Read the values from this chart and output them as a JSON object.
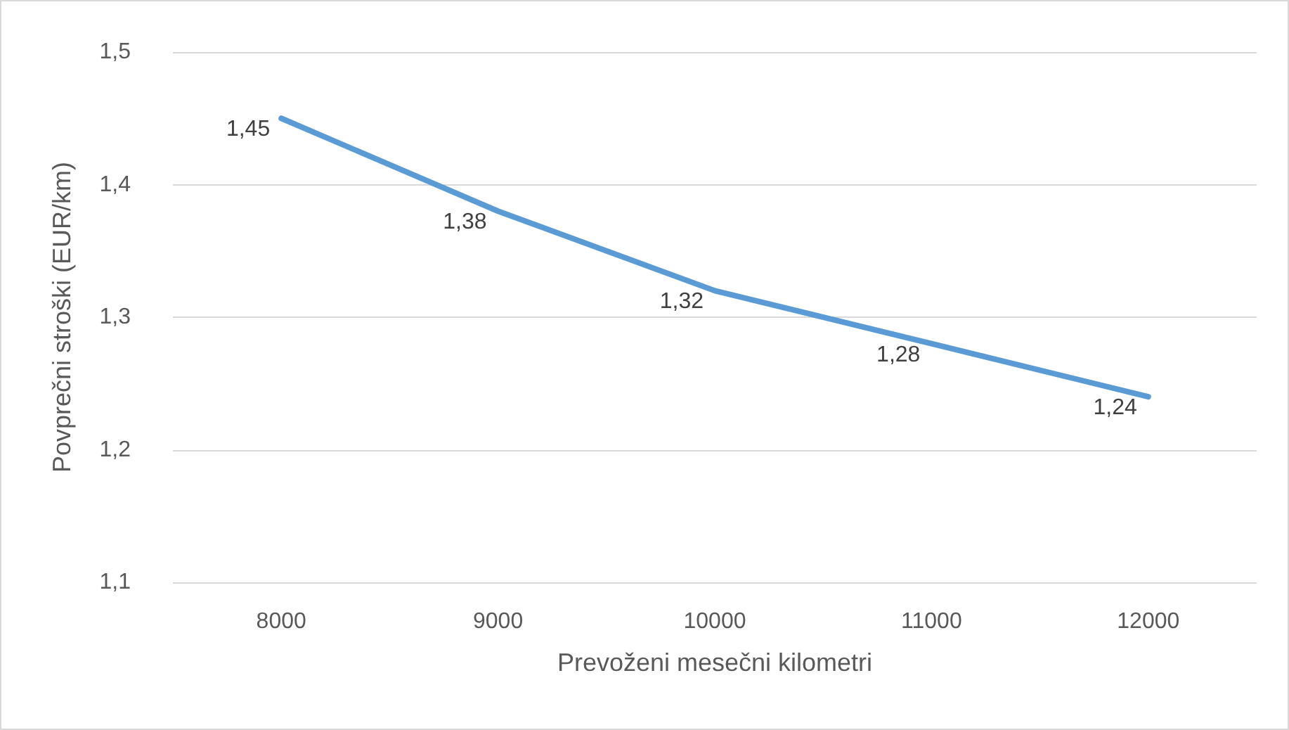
{
  "chart_data": {
    "type": "line",
    "xlabel": "Prevoženi mesečni kilometri",
    "ylabel": "Povprečni stroški (EUR/km)",
    "categories": [
      "8000",
      "9000",
      "10000",
      "11000",
      "12000"
    ],
    "series": [
      {
        "color": "#5b9bd5",
        "values": [
          1.45,
          1.38,
          1.32,
          1.28,
          1.24
        ],
        "value_labels": [
          "1,45",
          "1,38",
          "1,32",
          "1,28",
          "1,24"
        ]
      }
    ],
    "ylim": [
      1.1,
      1.5
    ],
    "yticks": [
      {
        "value": 1.1,
        "label": "1,1"
      },
      {
        "value": 1.2,
        "label": "1,2"
      },
      {
        "value": 1.3,
        "label": "1,3"
      },
      {
        "value": 1.4,
        "label": "1,4"
      },
      {
        "value": 1.5,
        "label": "1,5"
      }
    ],
    "grid": "y",
    "marker": "none",
    "line_style": "solid"
  }
}
